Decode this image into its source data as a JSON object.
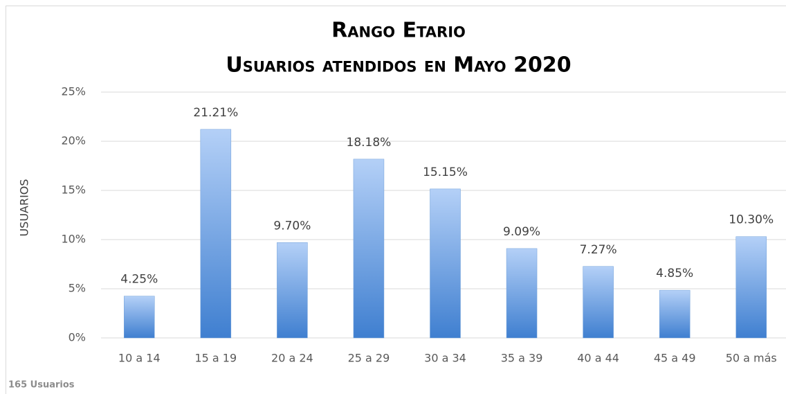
{
  "chart_data": {
    "type": "bar",
    "title": "Rango Etario",
    "subtitle": "Usuarios atendidos en Mayo 2020",
    "y_label": "USUARIOS",
    "note": "165 Usuarios",
    "categories": [
      "10 a 14",
      "15 a 19",
      "20 a 24",
      "25 a 29",
      "30 a 34",
      "35 a 39",
      "40 a 44",
      "45 a 49",
      "50 a más"
    ],
    "values": [
      4.25,
      21.21,
      9.7,
      18.18,
      15.15,
      9.09,
      7.27,
      4.85,
      10.3
    ],
    "value_labels": [
      "4.25%",
      "21.21%",
      "9.70%",
      "18.18%",
      "15.15%",
      "9.09%",
      "7.27%",
      "4.85%",
      "10.30%"
    ],
    "color": "#3f7fd0",
    "ylim": [
      0,
      25
    ],
    "yticks": [
      {
        "value": 0,
        "label": "0%"
      },
      {
        "value": 5,
        "label": "5%"
      },
      {
        "value": 10,
        "label": "10%"
      },
      {
        "value": 15,
        "label": "15%"
      },
      {
        "value": 20,
        "label": "20%"
      },
      {
        "value": 25,
        "label": "25%"
      }
    ],
    "grid": true
  }
}
